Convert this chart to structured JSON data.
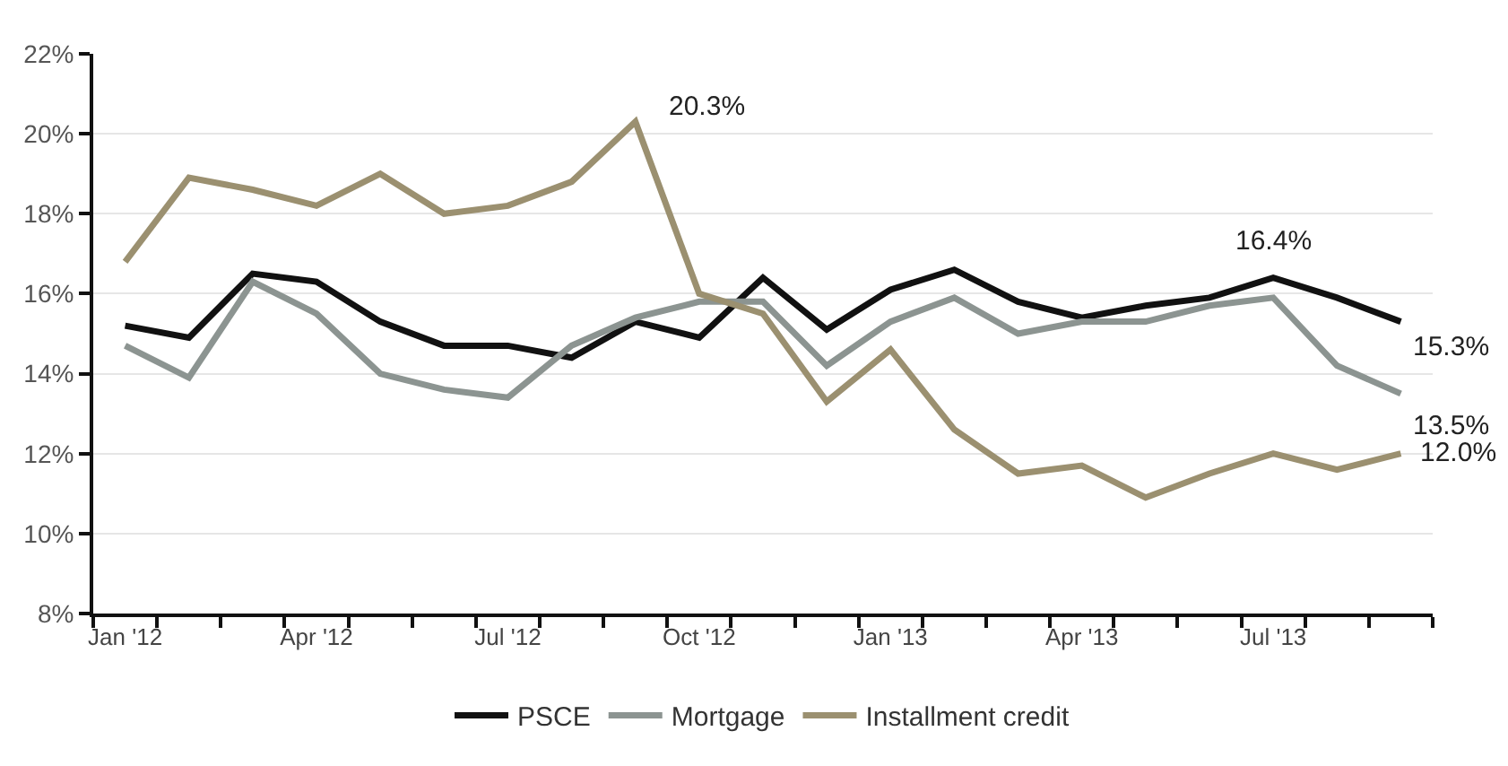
{
  "chart_data": {
    "type": "line",
    "categories": [
      "Jan '12",
      null,
      null,
      "Apr '12",
      null,
      null,
      "Jul '12",
      null,
      null,
      "Oct '12",
      null,
      null,
      "Jan '13",
      null,
      null,
      "Apr '13",
      null,
      null,
      "Jul '13",
      null,
      null
    ],
    "series": [
      {
        "name": "PSCE",
        "color": "#111111",
        "values": [
          15.2,
          14.9,
          16.5,
          16.3,
          15.3,
          14.7,
          14.7,
          14.4,
          15.3,
          14.9,
          16.4,
          15.1,
          16.1,
          16.6,
          15.8,
          15.4,
          15.7,
          15.9,
          16.4,
          15.9,
          15.3
        ]
      },
      {
        "name": "Mortgage",
        "color": "#8c9491",
        "values": [
          14.7,
          13.9,
          16.3,
          15.5,
          14.0,
          13.6,
          13.4,
          14.7,
          15.4,
          15.8,
          15.8,
          14.2,
          15.3,
          15.9,
          15.0,
          15.3,
          15.3,
          15.7,
          15.9,
          14.2,
          13.5
        ]
      },
      {
        "name": "Installment credit",
        "color": "#9b9070",
        "values": [
          16.8,
          18.9,
          18.6,
          18.2,
          19.0,
          18.0,
          18.2,
          18.8,
          20.3,
          16.0,
          15.5,
          13.3,
          14.6,
          12.6,
          11.5,
          11.7,
          10.9,
          11.5,
          12.0,
          11.6,
          12.0
        ]
      }
    ],
    "ylim": [
      8,
      22
    ],
    "yticks": [
      {
        "value": 8,
        "label": "8%"
      },
      {
        "value": 10,
        "label": "10%"
      },
      {
        "value": 12,
        "label": "12%"
      },
      {
        "value": 14,
        "label": "14%"
      },
      {
        "value": 16,
        "label": "16%"
      },
      {
        "value": 18,
        "label": "18%"
      },
      {
        "value": 20,
        "label": "20%"
      },
      {
        "value": 22,
        "label": "22%"
      }
    ],
    "grid": "y",
    "legend": "bottom",
    "marker": "none",
    "line_style": "solid",
    "annotations": [
      "20.3%",
      "16.4%",
      "15.3%",
      "13.5%",
      "12.0%"
    ]
  }
}
